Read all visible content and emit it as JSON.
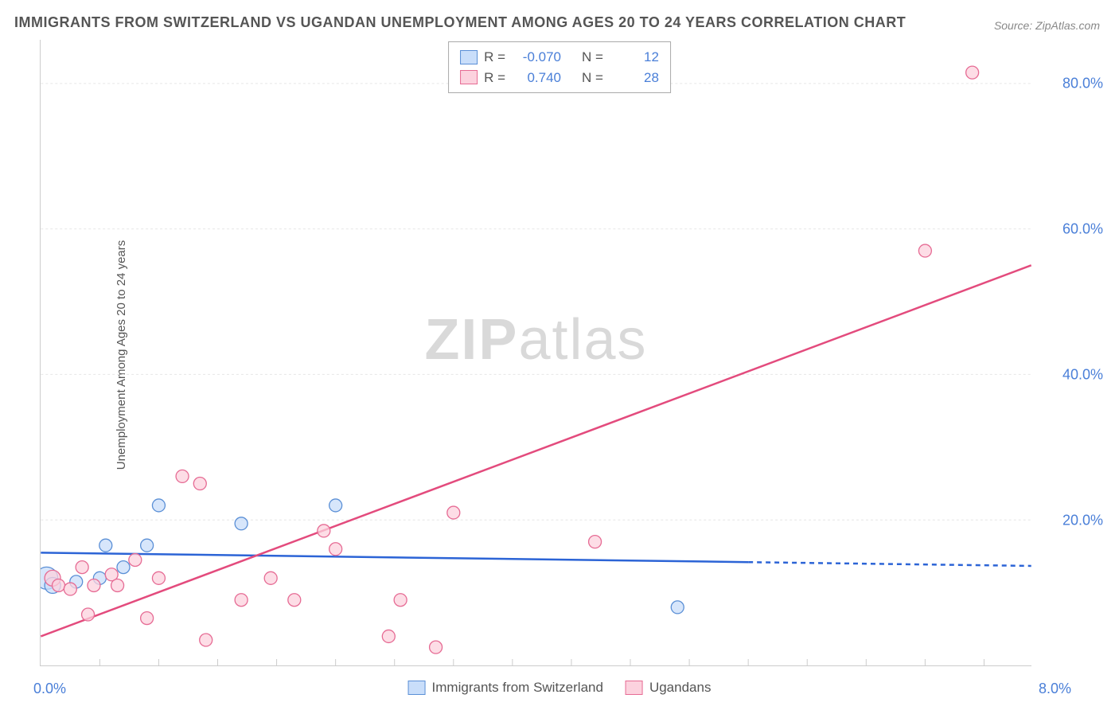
{
  "title": "IMMIGRANTS FROM SWITZERLAND VS UGANDAN UNEMPLOYMENT AMONG AGES 20 TO 24 YEARS CORRELATION CHART",
  "source": "Source: ZipAtlas.com",
  "ylabel": "Unemployment Among Ages 20 to 24 years",
  "watermark_bold": "ZIP",
  "watermark_light": "atlas",
  "chart": {
    "type": "scatter-with-regression",
    "background_color": "#ffffff",
    "grid_color": "#e6e6e6",
    "border_color": "#cccccc",
    "xlim": [
      0.0,
      8.4
    ],
    "ylim": [
      0.0,
      86.0
    ],
    "x_tick_start": "0.0%",
    "x_tick_end": "8.0%",
    "y_ticks": [
      {
        "value": 20.0,
        "label": "20.0%"
      },
      {
        "value": 40.0,
        "label": "40.0%"
      },
      {
        "value": 60.0,
        "label": "60.0%"
      },
      {
        "value": 80.0,
        "label": "80.0%"
      }
    ],
    "x_minor_ticks": [
      0.5,
      1.0,
      1.5,
      2.0,
      2.5,
      3.0,
      3.5,
      4.0,
      4.5,
      5.0,
      5.5,
      6.0,
      6.5,
      7.0,
      7.5,
      8.0
    ],
    "series": [
      {
        "id": "swiss",
        "label": "Immigrants from Switzerland",
        "R_label": "R = ",
        "R_value": "-0.070",
        "N_label": "N = ",
        "N_value": "12",
        "marker_fill": "#c9defa",
        "marker_stroke": "#5a8fd6",
        "line_color": "#2c64d6",
        "marker_radius": 8,
        "line_width": 2.5,
        "regression": {
          "x1": 0.0,
          "y1": 15.5,
          "x2": 6.0,
          "y2": 14.2,
          "dashed_extend_to_x": 8.4
        },
        "points": [
          {
            "x": 0.05,
            "y": 12.0,
            "r": 14
          },
          {
            "x": 0.1,
            "y": 11.0,
            "r": 10
          },
          {
            "x": 0.3,
            "y": 11.5,
            "r": 8
          },
          {
            "x": 0.5,
            "y": 12.0,
            "r": 8
          },
          {
            "x": 0.55,
            "y": 16.5,
            "r": 8
          },
          {
            "x": 0.7,
            "y": 13.5,
            "r": 8
          },
          {
            "x": 0.9,
            "y": 16.5,
            "r": 8
          },
          {
            "x": 1.0,
            "y": 22.0,
            "r": 8
          },
          {
            "x": 1.7,
            "y": 19.5,
            "r": 8
          },
          {
            "x": 2.5,
            "y": 22.0,
            "r": 8
          },
          {
            "x": 5.4,
            "y": 8.0,
            "r": 8
          }
        ]
      },
      {
        "id": "ugandan",
        "label": "Ugandans",
        "R_label": "R = ",
        "R_value": "0.740",
        "N_label": "N = ",
        "N_value": "28",
        "marker_fill": "#fcd2de",
        "marker_stroke": "#e66b94",
        "line_color": "#e34b7d",
        "marker_radius": 8,
        "line_width": 2.5,
        "regression": {
          "x1": 0.0,
          "y1": 4.0,
          "x2": 8.4,
          "y2": 55.0
        },
        "points": [
          {
            "x": 0.1,
            "y": 12.0,
            "r": 10
          },
          {
            "x": 0.15,
            "y": 11.0,
            "r": 8
          },
          {
            "x": 0.25,
            "y": 10.5,
            "r": 8
          },
          {
            "x": 0.35,
            "y": 13.5,
            "r": 8
          },
          {
            "x": 0.4,
            "y": 7.0,
            "r": 8
          },
          {
            "x": 0.45,
            "y": 11.0,
            "r": 8
          },
          {
            "x": 0.6,
            "y": 12.5,
            "r": 8
          },
          {
            "x": 0.65,
            "y": 11.0,
            "r": 8
          },
          {
            "x": 0.8,
            "y": 14.5,
            "r": 8
          },
          {
            "x": 0.9,
            "y": 6.5,
            "r": 8
          },
          {
            "x": 1.0,
            "y": 12.0,
            "r": 8
          },
          {
            "x": 1.2,
            "y": 26.0,
            "r": 8
          },
          {
            "x": 1.35,
            "y": 25.0,
            "r": 8
          },
          {
            "x": 1.4,
            "y": 3.5,
            "r": 8
          },
          {
            "x": 1.7,
            "y": 9.0,
            "r": 8
          },
          {
            "x": 1.95,
            "y": 12.0,
            "r": 8
          },
          {
            "x": 2.15,
            "y": 9.0,
            "r": 8
          },
          {
            "x": 2.4,
            "y": 18.5,
            "r": 8
          },
          {
            "x": 2.5,
            "y": 16.0,
            "r": 8
          },
          {
            "x": 2.95,
            "y": 4.0,
            "r": 8
          },
          {
            "x": 3.05,
            "y": 9.0,
            "r": 8
          },
          {
            "x": 3.35,
            "y": 2.5,
            "r": 8
          },
          {
            "x": 3.5,
            "y": 21.0,
            "r": 8
          },
          {
            "x": 4.7,
            "y": 17.0,
            "r": 8
          },
          {
            "x": 7.5,
            "y": 57.0,
            "r": 8
          },
          {
            "x": 7.9,
            "y": 81.5,
            "r": 8
          }
        ]
      }
    ]
  },
  "legend_bottom": [
    {
      "label": "Immigrants from Switzerland",
      "fill": "#c9defa",
      "stroke": "#5a8fd6"
    },
    {
      "label": "Ugandans",
      "fill": "#fcd2de",
      "stroke": "#e66b94"
    }
  ]
}
